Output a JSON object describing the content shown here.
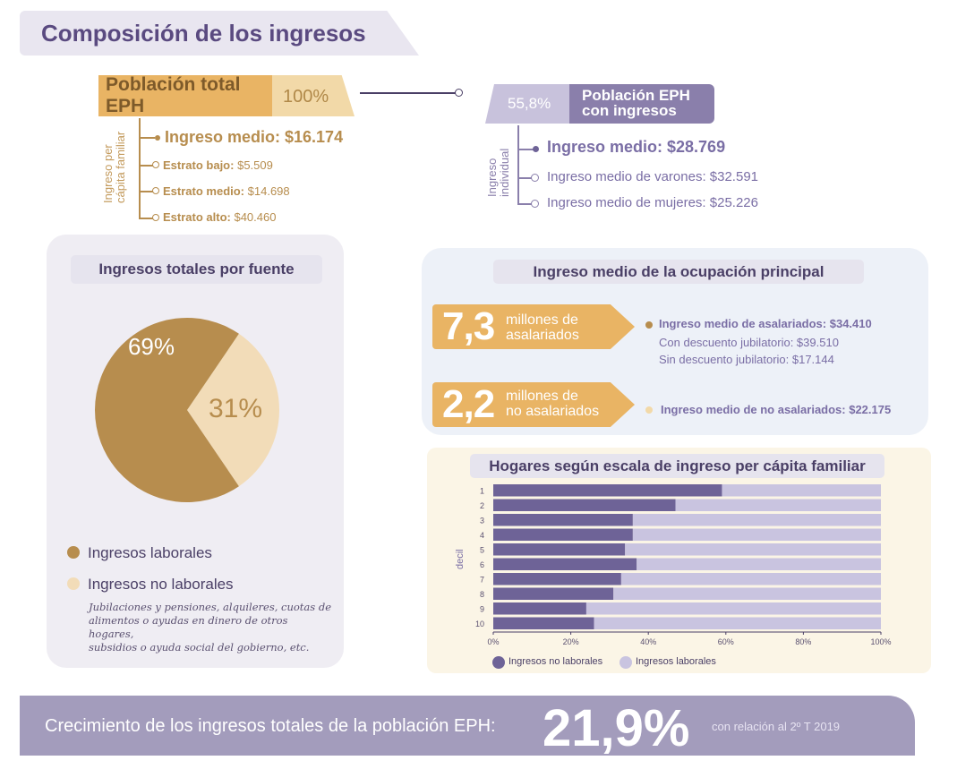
{
  "title": "Composición de los ingresos",
  "poblacion_total": {
    "label": "Población total EPH",
    "pct": "100%",
    "axis_label_1": "Ingreso per",
    "axis_label_2": "cápita familiar",
    "ingreso_medio": "Ingreso medio: $16.174",
    "estratos": [
      {
        "label": "Estrato bajo:",
        "value": "$5.509"
      },
      {
        "label": "Estrato medio:",
        "value": "$14.698"
      },
      {
        "label": "Estrato alto:",
        "value": "$40.460"
      }
    ]
  },
  "poblacion_eph": {
    "pct": "55,8%",
    "label_1": "Población EPH",
    "label_2": "con ingresos",
    "axis_label_1": "Ingreso",
    "axis_label_2": "individual",
    "ingreso_medio": "Ingreso medio: $28.769",
    "varones": {
      "label": "Ingreso medio de varones:",
      "value": "$32.591"
    },
    "mujeres": {
      "label": "Ingreso medio de mujeres:",
      "value": "$25.226"
    }
  },
  "fuente": {
    "title": "Ingresos totales por fuente",
    "legend": [
      {
        "label": "Ingresos laborales",
        "color": "#b78d4e"
      },
      {
        "label": "Ingresos no laborales",
        "color": "#f2dcb8"
      }
    ],
    "note_lines": [
      "Jubilaciones y pensiones, alquileres, cuotas de",
      "alimentos o ayudas en dinero de otros hogares,",
      "subsidios o ayuda social del gobierno, etc."
    ]
  },
  "ocupacion": {
    "title": "Ingreso medio de la ocupación principal",
    "asalariados": {
      "num": "7,3",
      "label_1": "millones de",
      "label_2": "asalariados",
      "ingreso": "Ingreso medio de asalariados: $34.410",
      "con_desc": "Con descuento jubilatorio: $39.510",
      "sin_desc": "Sin descuento jubilatorio: $17.144"
    },
    "no_asalariados": {
      "num": "2,2",
      "label_1": "millones de",
      "label_2": "no asalariados",
      "ingreso": "Ingreso medio de no asalariados: $22.175"
    }
  },
  "hogares": {
    "title": "Hogares según escala de ingreso per cápita familiar",
    "ylabel": "decil",
    "legend": [
      {
        "label": "Ingresos no laborales",
        "color": "#6e6397"
      },
      {
        "label": "Ingresos laborales",
        "color": "#c9c4e0"
      }
    ]
  },
  "crecimiento": {
    "text": "Crecimiento de los ingresos totales de la población EPH:",
    "value": "21,9%",
    "note": "con relación al 2º T 2019"
  },
  "chart_data": [
    {
      "type": "pie",
      "title": "Ingresos totales por fuente",
      "labels": [
        "Ingresos laborales",
        "Ingresos no laborales"
      ],
      "values": [
        69,
        31
      ],
      "value_labels": [
        "69%",
        "31%"
      ],
      "colors": [
        "#b78d4e",
        "#f2dcb8"
      ]
    },
    {
      "type": "bar",
      "orientation": "horizontal",
      "stacked": true,
      "title": "Hogares según escala de ingreso per cápita familiar",
      "ylabel": "decil",
      "categories": [
        "1",
        "2",
        "3",
        "4",
        "5",
        "6",
        "7",
        "8",
        "9",
        "10"
      ],
      "xlim": [
        0,
        100
      ],
      "xticks": [
        "0%",
        "20%",
        "40%",
        "60%",
        "80%",
        "100%"
      ],
      "series": [
        {
          "name": "Ingresos no laborales",
          "values": [
            59,
            47,
            36,
            36,
            34,
            37,
            33,
            31,
            24,
            26
          ],
          "color": "#6e6397"
        },
        {
          "name": "Ingresos laborales",
          "values": [
            41,
            53,
            64,
            64,
            66,
            63,
            67,
            69,
            76,
            74
          ],
          "color": "#c9c4e0"
        }
      ],
      "legend_position": "bottom-left",
      "grid": false
    }
  ]
}
